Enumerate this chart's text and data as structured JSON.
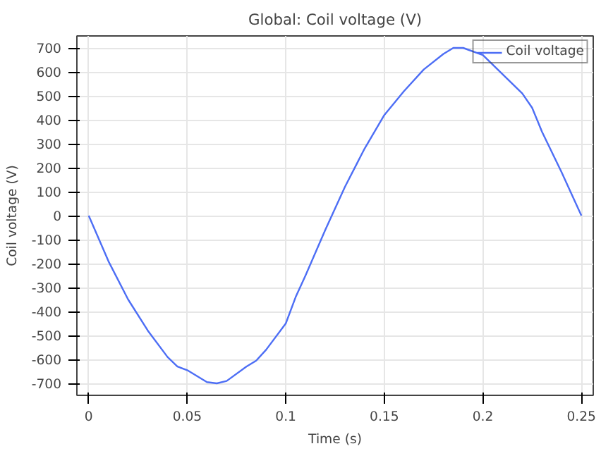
{
  "chart_data": {
    "type": "line",
    "title": "Global: Coil voltage (V)",
    "xlabel": "Time (s)",
    "ylabel": "Coil voltage (V)",
    "x": [
      0,
      0.01,
      0.02,
      0.03,
      0.04,
      0.045,
      0.05,
      0.06,
      0.065,
      0.07,
      0.08,
      0.085,
      0.09,
      0.1,
      0.105,
      0.11,
      0.12,
      0.13,
      0.14,
      0.15,
      0.16,
      0.17,
      0.18,
      0.185,
      0.19,
      0.2,
      0.21,
      0.22,
      0.225,
      0.23,
      0.24,
      0.25
    ],
    "series": [
      {
        "name": "Coil voltage",
        "color": "#4d6ef5",
        "values": [
          0,
          -190,
          -350,
          -480,
          -590,
          -630,
          -645,
          -695,
          -700,
          -690,
          -630,
          -605,
          -560,
          -450,
          -340,
          -250,
          -60,
          120,
          280,
          420,
          520,
          610,
          675,
          700,
          700,
          670,
          590,
          510,
          450,
          350,
          180,
          0
        ]
      }
    ],
    "xlim": [
      -0.006,
      0.256
    ],
    "ylim": [
      -750,
      750
    ],
    "xticks": [
      0,
      0.05,
      0.1,
      0.15,
      0.2,
      0.25
    ],
    "yticks": [
      -700,
      -600,
      -500,
      -400,
      -300,
      -200,
      -100,
      0,
      100,
      200,
      300,
      400,
      500,
      600,
      700
    ],
    "grid": true,
    "legend": "top right",
    "line_style": "solid",
    "marker": "none"
  }
}
